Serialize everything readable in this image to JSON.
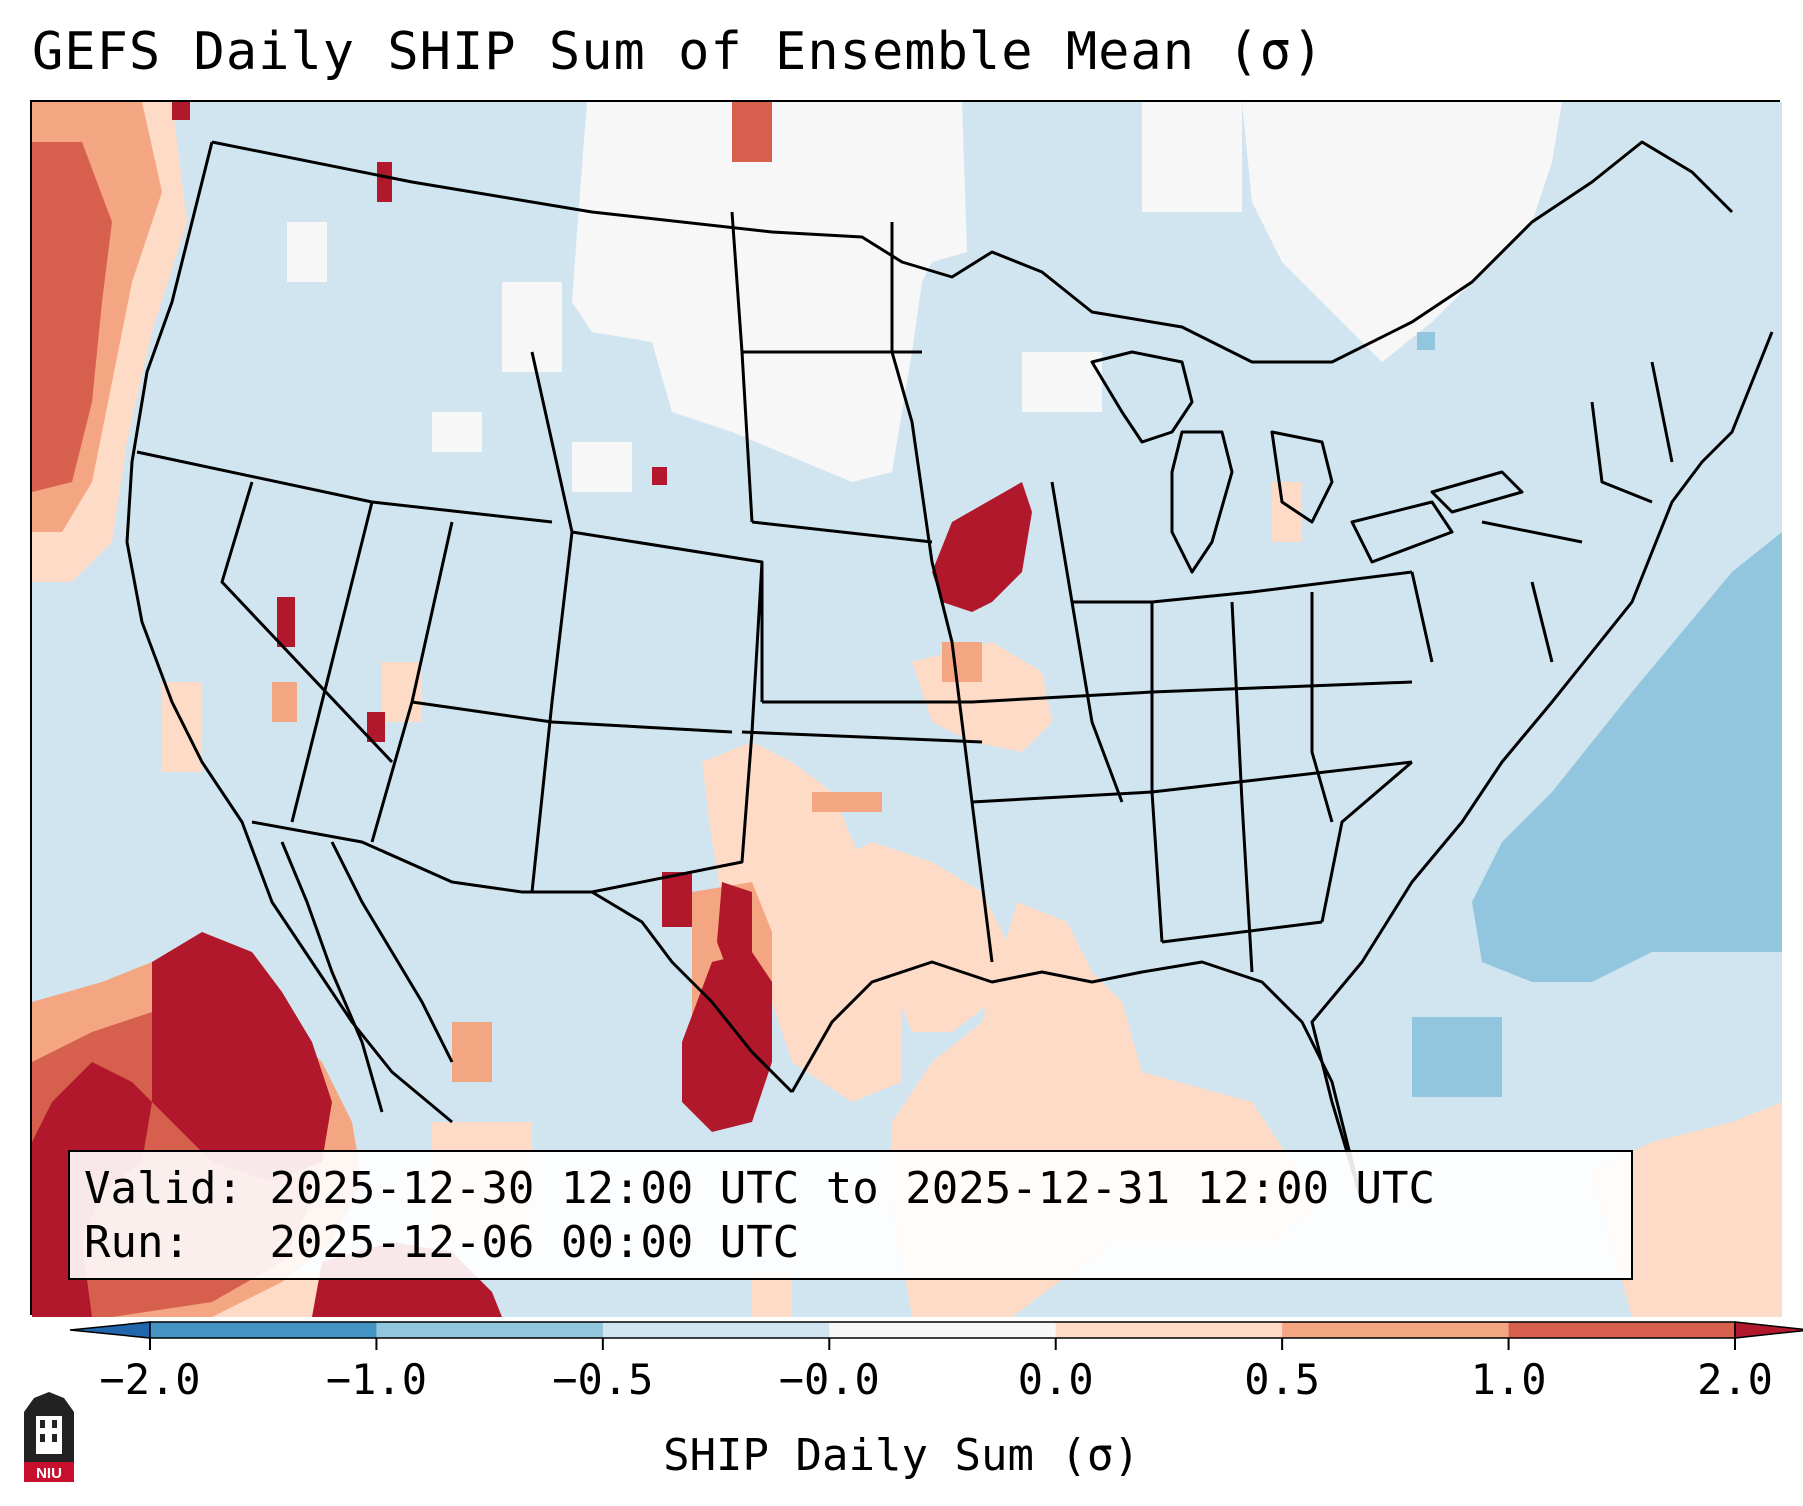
{
  "title": "GEFS Daily SHIP Sum of Ensemble Mean (σ)",
  "info": {
    "valid_label": "Valid:",
    "valid_value": "2025-12-30 12:00 UTC to 2025-12-31 12:00 UTC",
    "run_label": "Run:  ",
    "run_value": "2025-12-06 00:00 UTC"
  },
  "colorbar": {
    "label": "SHIP Daily Sum (σ)",
    "tick_labels": [
      "−2.0",
      "−1.0",
      "−0.5",
      "−0.0",
      "0.0",
      "0.5",
      "1.0",
      "2.0"
    ],
    "bin_colors": [
      "#4393c3",
      "#92c5de",
      "#d1e5f0",
      "#f7f7f7",
      "#fddbc7",
      "#f4a582",
      "#d6604d"
    ],
    "under_color": "#2166ac",
    "over_color": "#b2182b"
  },
  "map": {
    "ocean_fill": "#d1e5f0",
    "border_color": "#000000",
    "domain": "Contiguous United States, northern Mexico and surrounding waters"
  },
  "logo": {
    "text": "NIU",
    "color": "#c8102e"
  }
}
